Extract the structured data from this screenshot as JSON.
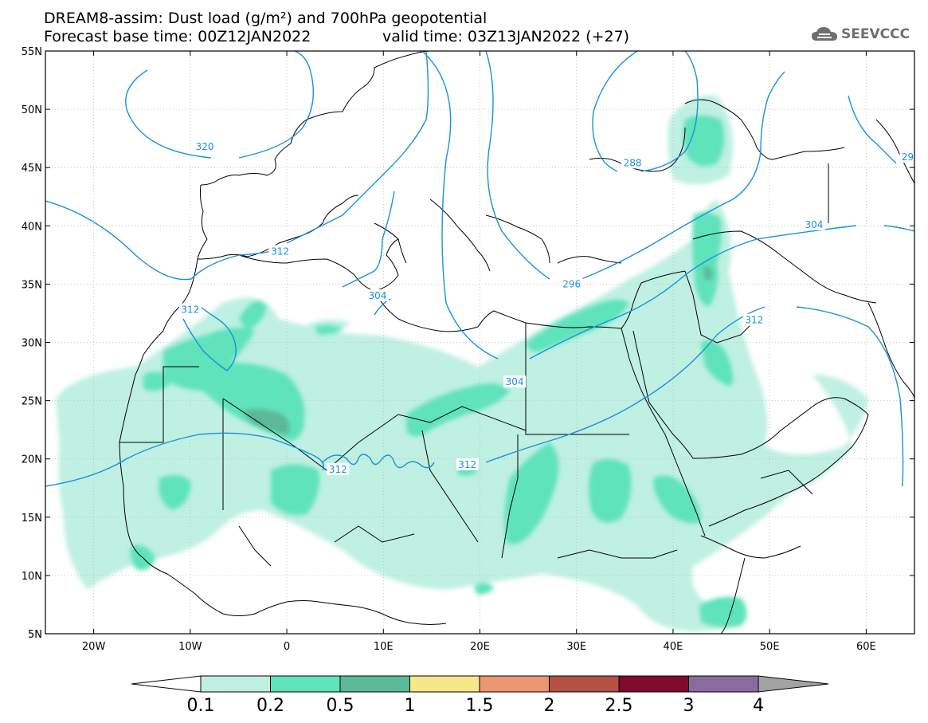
{
  "title": {
    "line1": "DREAM8-assim: Dust load (g/m²) and 700hPa geopotential",
    "line2": "Forecast base time: 00Z12JAN2022",
    "valid": "valid time: 03Z13JAN2022 (+27)"
  },
  "logo": {
    "text": "SEEVCCC",
    "icon": "cloud-icon"
  },
  "map": {
    "lon_range": [
      -25,
      65
    ],
    "lat_range": [
      5,
      55
    ],
    "lon_ticks": [
      {
        "value": -20,
        "label": "20W"
      },
      {
        "value": -10,
        "label": "10W"
      },
      {
        "value": 0,
        "label": "0"
      },
      {
        "value": 10,
        "label": "10E"
      },
      {
        "value": 20,
        "label": "20E"
      },
      {
        "value": 30,
        "label": "30E"
      },
      {
        "value": 40,
        "label": "40E"
      },
      {
        "value": 50,
        "label": "50E"
      },
      {
        "value": 60,
        "label": "60E"
      }
    ],
    "lat_ticks": [
      {
        "value": 55,
        "label": "55N"
      },
      {
        "value": 50,
        "label": "50N"
      },
      {
        "value": 45,
        "label": "45N"
      },
      {
        "value": 40,
        "label": "40N"
      },
      {
        "value": 35,
        "label": "35N"
      },
      {
        "value": 30,
        "label": "30N"
      },
      {
        "value": 25,
        "label": "25N"
      },
      {
        "value": 20,
        "label": "20N"
      },
      {
        "value": 15,
        "label": "15N"
      },
      {
        "value": 10,
        "label": "10N"
      },
      {
        "value": 5,
        "label": "5N"
      }
    ],
    "gridlines": true,
    "contour_color": "#1a90e0",
    "contour_labels": [
      {
        "text": "320",
        "lon": -8.5,
        "lat": 46.8
      },
      {
        "text": "312",
        "lon": -0.7,
        "lat": 37.8
      },
      {
        "text": "312",
        "lon": -10.0,
        "lat": 32.8
      },
      {
        "text": "304",
        "lon": 9.4,
        "lat": 34.0
      },
      {
        "text": "304",
        "lon": 23.6,
        "lat": 26.6
      },
      {
        "text": "312",
        "lon": 5.3,
        "lat": 19.1
      },
      {
        "text": "312",
        "lon": 18.7,
        "lat": 19.5
      },
      {
        "text": "296",
        "lon": 29.5,
        "lat": 35.0
      },
      {
        "text": "288",
        "lon": 35.8,
        "lat": 45.4
      },
      {
        "text": "304",
        "lon": 54.6,
        "lat": 40.1
      },
      {
        "text": "312",
        "lon": 48.4,
        "lat": 31.9
      },
      {
        "text": "29",
        "lon": 64.3,
        "lat": 45.9
      }
    ]
  },
  "colorbar": {
    "labels": [
      "0.1",
      "0.2",
      "0.5",
      "1",
      "1.5",
      "2",
      "2.5",
      "3",
      "4"
    ],
    "colors": [
      "#ffffff",
      "#bff0e2",
      "#5ee3bb",
      "#5cb896",
      "#f5e888",
      "#eb9670",
      "#b25144",
      "#7e0a2c",
      "#8a6b9e",
      "#a3a3a3"
    ]
  }
}
